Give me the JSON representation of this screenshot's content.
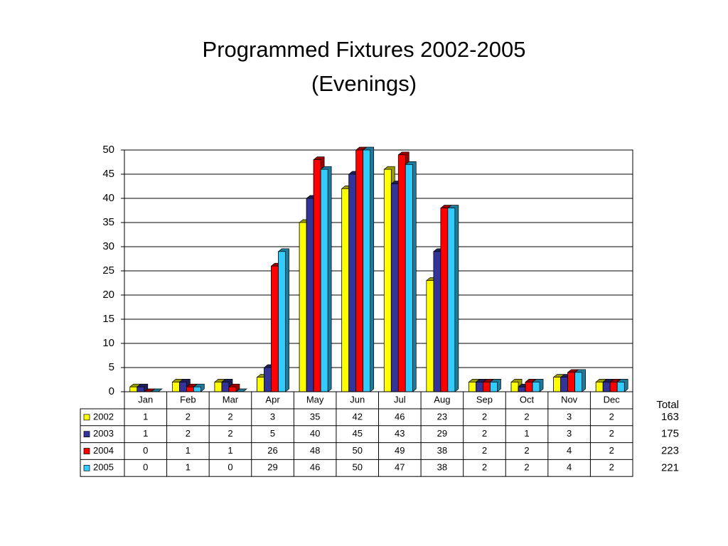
{
  "chart_data": {
    "type": "bar",
    "title": "Programmed Fixtures 2002-2005",
    "subtitle": "(Evenings)",
    "categories": [
      "Jan",
      "Feb",
      "Mar",
      "Apr",
      "May",
      "Jun",
      "Jul",
      "Aug",
      "Sep",
      "Oct",
      "Nov",
      "Dec"
    ],
    "series": [
      {
        "name": "2002",
        "color": "#ffff00",
        "values": [
          1,
          2,
          2,
          3,
          35,
          42,
          46,
          23,
          2,
          2,
          3,
          2
        ]
      },
      {
        "name": "2003",
        "color": "#333399",
        "values": [
          1,
          2,
          2,
          5,
          40,
          45,
          43,
          29,
          2,
          1,
          3,
          2
        ]
      },
      {
        "name": "2004",
        "color": "#ff0000",
        "values": [
          0,
          1,
          1,
          26,
          48,
          50,
          49,
          38,
          2,
          2,
          4,
          2
        ]
      },
      {
        "name": "2005",
        "color": "#33ccff",
        "values": [
          0,
          1,
          0,
          29,
          46,
          50,
          47,
          38,
          2,
          2,
          4,
          2
        ]
      }
    ],
    "ylim": [
      0,
      50
    ],
    "yticks": [
      0,
      5,
      10,
      15,
      20,
      25,
      30,
      35,
      40,
      45,
      50
    ],
    "grid": true,
    "totals": {
      "label": "Total",
      "values": [
        163,
        175,
        223,
        221
      ]
    }
  }
}
